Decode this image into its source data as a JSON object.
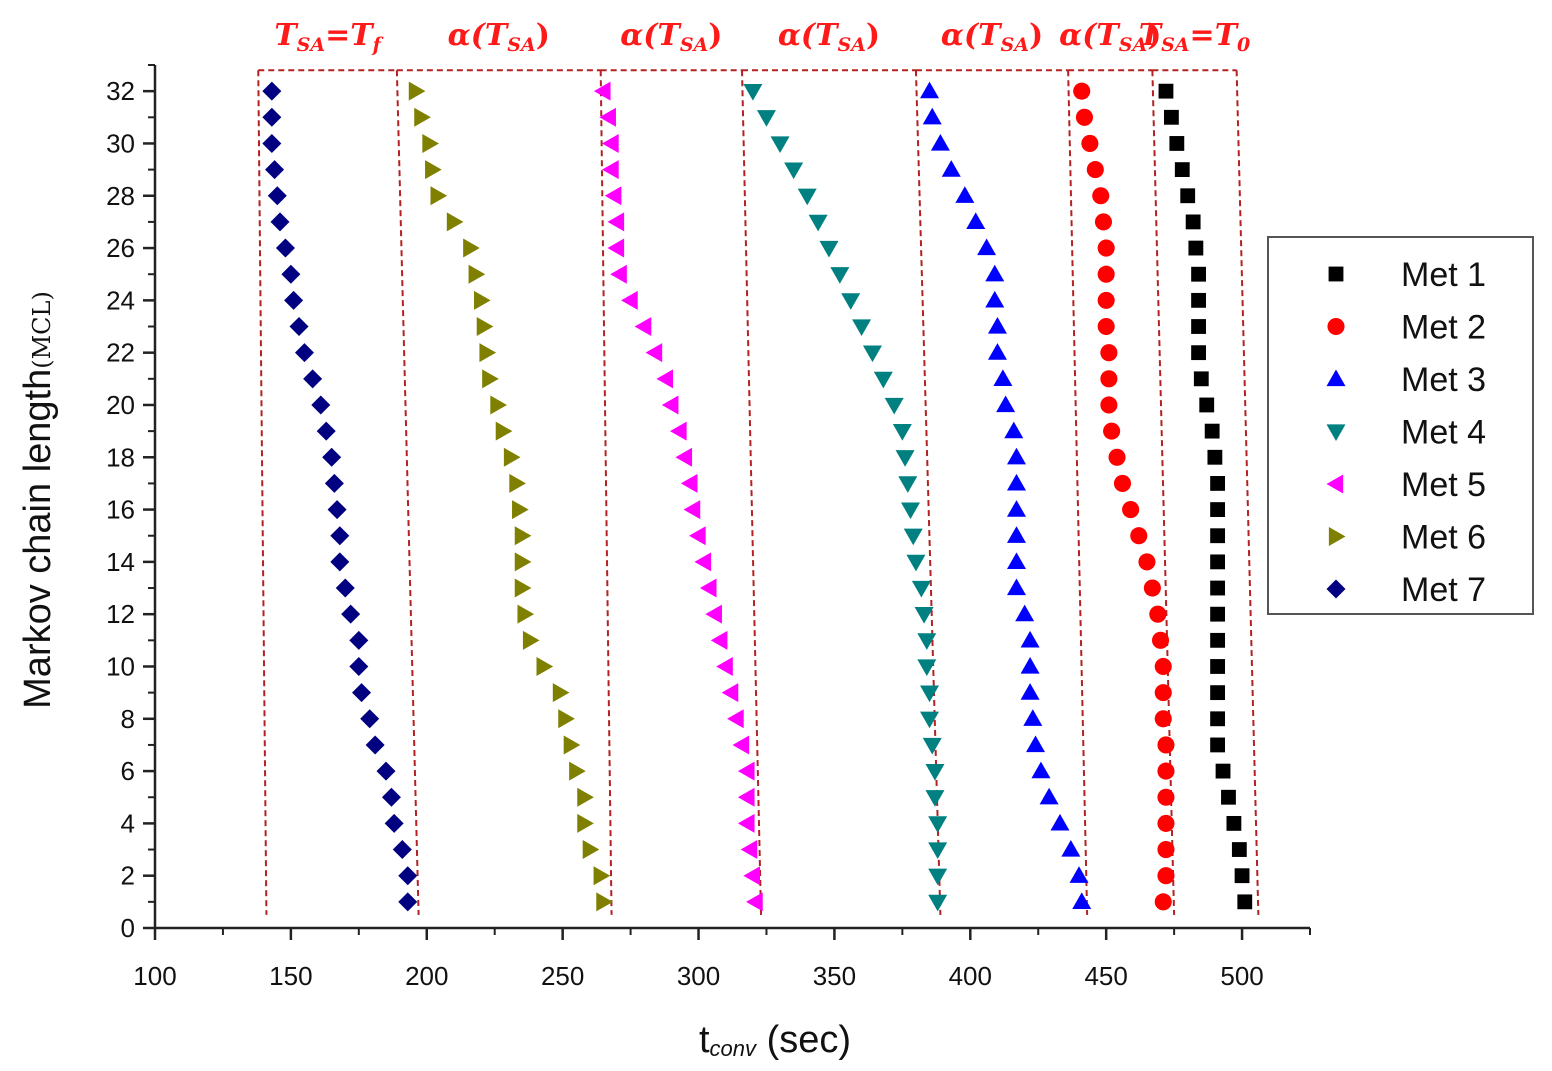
{
  "chart_data": {
    "type": "scatter",
    "xlabel": "t",
    "xlabel_sub": "conv",
    "xlabel_unit": " (sec)",
    "ylabel": "Markov chain length",
    "ylabel_sub": "(MCL)",
    "xlim": [
      100,
      525
    ],
    "ylim": [
      0,
      33
    ],
    "xticks": [
      100,
      150,
      200,
      250,
      300,
      350,
      400,
      450,
      500
    ],
    "yticks": [
      0,
      2,
      4,
      6,
      8,
      10,
      12,
      14,
      16,
      18,
      20,
      22,
      24,
      26,
      28,
      30,
      32
    ],
    "grid": false,
    "legend_position": "right",
    "y": [
      32,
      31,
      30,
      29,
      28,
      27,
      26,
      25,
      24,
      23,
      22,
      21,
      20,
      19,
      18,
      17,
      16,
      15,
      14,
      13,
      12,
      11,
      10,
      9,
      8,
      7,
      6,
      5,
      4,
      3,
      2,
      1
    ],
    "series": [
      {
        "name": "Met 1",
        "marker": "square",
        "color": "#000000",
        "x": [
          472,
          474,
          476,
          478,
          480,
          482,
          483,
          484,
          484,
          484,
          484,
          485,
          487,
          489,
          490,
          491,
          491,
          491,
          491,
          491,
          491,
          491,
          491,
          491,
          491,
          491,
          493,
          495,
          497,
          499,
          500,
          501
        ]
      },
      {
        "name": "Met 2",
        "marker": "circle",
        "color": "#ff0000",
        "x": [
          441,
          442,
          444,
          446,
          448,
          449,
          450,
          450,
          450,
          450,
          451,
          451,
          451,
          452,
          454,
          456,
          459,
          462,
          465,
          467,
          469,
          470,
          471,
          471,
          471,
          472,
          472,
          472,
          472,
          472,
          472,
          471
        ]
      },
      {
        "name": "Met 3",
        "marker": "triangle-up",
        "color": "#0000ff",
        "x": [
          385,
          386,
          389,
          393,
          398,
          402,
          406,
          409,
          409,
          410,
          410,
          412,
          413,
          416,
          417,
          417,
          417,
          417,
          417,
          417,
          420,
          422,
          422,
          422,
          423,
          424,
          426,
          429,
          433,
          437,
          440,
          441
        ]
      },
      {
        "name": "Met 4",
        "marker": "triangle-down",
        "color": "#008080",
        "x": [
          320,
          325,
          330,
          335,
          340,
          344,
          348,
          352,
          356,
          360,
          364,
          368,
          372,
          375,
          376,
          377,
          378,
          379,
          380,
          382,
          383,
          384,
          384,
          385,
          385,
          386,
          387,
          387,
          388,
          388,
          388,
          388
        ]
      },
      {
        "name": "Met 5",
        "marker": "triangle-left",
        "color": "#ff00ff",
        "x": [
          265,
          267,
          268,
          268,
          269,
          270,
          270,
          271,
          275,
          280,
          284,
          288,
          290,
          293,
          295,
          297,
          298,
          300,
          302,
          304,
          306,
          308,
          310,
          312,
          314,
          316,
          318,
          318,
          318,
          319,
          320,
          321
        ]
      },
      {
        "name": "Met 6",
        "marker": "triangle-right",
        "color": "#808000",
        "x": [
          196,
          198,
          201,
          202,
          204,
          210,
          216,
          218,
          220,
          221,
          222,
          223,
          226,
          228,
          231,
          233,
          234,
          235,
          235,
          235,
          236,
          238,
          243,
          249,
          251,
          253,
          255,
          258,
          258,
          260,
          264,
          265
        ]
      },
      {
        "name": "Met 7",
        "marker": "diamond",
        "color": "#000080",
        "x": [
          143,
          143,
          143,
          144,
          145,
          146,
          148,
          150,
          151,
          153,
          155,
          158,
          161,
          163,
          165,
          166,
          167,
          168,
          168,
          170,
          172,
          175,
          175,
          176,
          179,
          181,
          185,
          187,
          188,
          191,
          193,
          193
        ]
      }
    ],
    "annotations": {
      "labels": [
        {
          "base": "T",
          "sub": "SA",
          "eq": "=",
          "rhs": "T",
          "rhs_sub": "f"
        },
        {
          "base": "α(T",
          "sub": "SA",
          "close": ")"
        },
        {
          "base": "α(T",
          "sub": "SA",
          "close": ")"
        },
        {
          "base": "α(T",
          "sub": "SA",
          "close": ")"
        },
        {
          "base": "α(T",
          "sub": "SA",
          "close": ")"
        },
        {
          "base": "α(T",
          "sub": "SA",
          "close": ")"
        },
        {
          "base": "T",
          "sub": "SA",
          "eq": "=",
          "rhs": "T",
          "rhs_sub": "0"
        }
      ],
      "band_boundaries": [
        {
          "x_top": 138,
          "x_bottom": 141
        },
        {
          "x_top": 189,
          "x_bottom": 197
        },
        {
          "x_top": 264,
          "x_bottom": 268
        },
        {
          "x_top": 316,
          "x_bottom": 323
        },
        {
          "x_top": 380,
          "x_bottom": 389
        },
        {
          "x_top": 436,
          "x_bottom": 443
        },
        {
          "x_top": 467,
          "x_bottom": 475
        },
        {
          "x_top": 498,
          "x_bottom": 506
        }
      ],
      "band_top_y": 32.8,
      "band_bottom_y": 0.5,
      "line_color": "#b22222"
    }
  }
}
